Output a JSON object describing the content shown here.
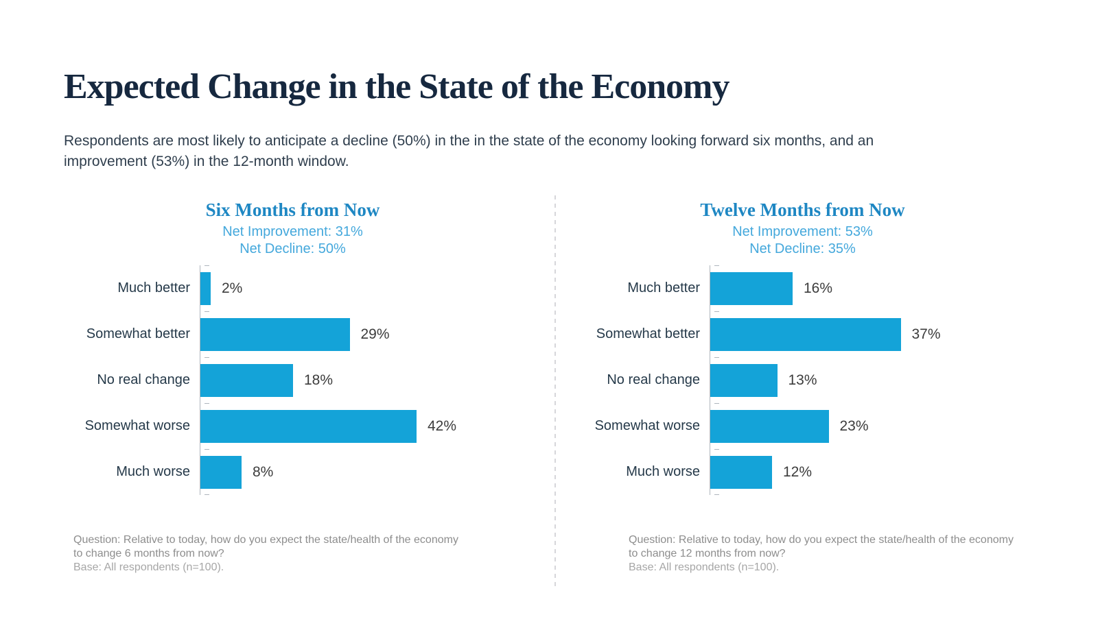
{
  "slide": {
    "title": "Expected Change in the State of the Economy",
    "subtitle_lines": [
      "Respondents are most likely to anticipate a decline (50%) in the in the state of the economy looking forward six months, and an",
      "improvement (53%) in the 12-month window."
    ]
  },
  "colors": {
    "accent_blue": "#1E87C3",
    "light_blue": "#44A8DC",
    "bar_blue": "#14A3D8",
    "title_navy": "#16283F",
    "body_slate": "#2F3E4D",
    "label_slate": "#253949",
    "value_gray": "#3C3C3C",
    "axis_gray": "#AEB5BC",
    "divider_gray": "#D6D6DA",
    "footnote_gray": "#8D8D8D",
    "footnote_light_gray": "#A6A6A6"
  },
  "chart_data": [
    {
      "type": "bar",
      "orientation": "horizontal",
      "title": "Six Months from Now",
      "subtitle_lines": [
        "Net Improvement: 31%",
        "Net Decline: 50%"
      ],
      "categories": [
        "Much better",
        "Somewhat better",
        "No real change",
        "Somewhat worse",
        "Much worse"
      ],
      "values": [
        2,
        29,
        18,
        42,
        8
      ],
      "value_labels": [
        "2%",
        "29%",
        "18%",
        "42%",
        "8%"
      ],
      "xlim": [
        0,
        50
      ],
      "grid": false,
      "legend": "none",
      "bar_color": "#14A3D8",
      "footnote_lines": [
        "Question: Relative to today, how do you expect the state/health of the economy",
        "to change 6 months from now?",
        "Base: All respondents (n=100)."
      ]
    },
    {
      "type": "bar",
      "orientation": "horizontal",
      "title": "Twelve Months from Now",
      "subtitle_lines": [
        "Net Improvement: 53%",
        "Net Decline: 35%"
      ],
      "categories": [
        "Much better",
        "Somewhat better",
        "No real change",
        "Somewhat worse",
        "Much worse"
      ],
      "values": [
        16,
        37,
        13,
        23,
        12
      ],
      "value_labels": [
        "16%",
        "37%",
        "13%",
        "23%",
        "12%"
      ],
      "xlim": [
        0,
        50
      ],
      "grid": false,
      "legend": "none",
      "bar_color": "#14A3D8",
      "footnote_lines": [
        "Question: Relative to today, how do you expect the state/health of the economy",
        "to change 12 months from now?",
        "Base: All respondents (n=100)."
      ]
    }
  ]
}
